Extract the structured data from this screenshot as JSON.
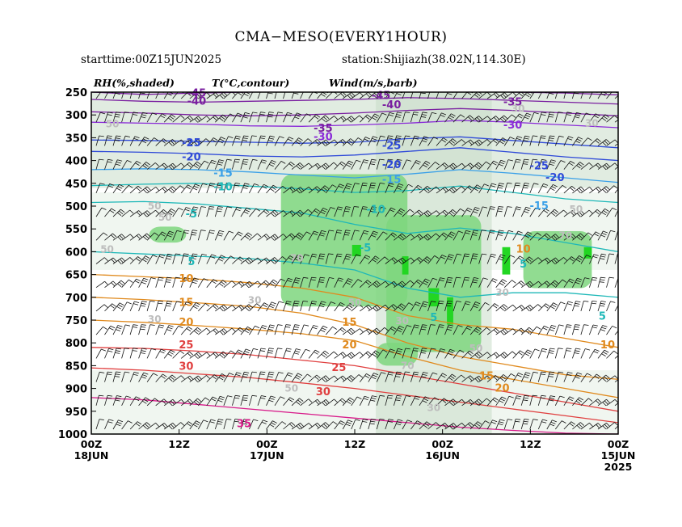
{
  "header": {
    "title": "CMA−MESO(EVERY1HOUR)",
    "starttime": "starttime:00Z15JUN2025",
    "station": "station:Shijiazh(38.02N,114.30E)",
    "legend_rh": "RH(%,shaded)",
    "legend_t": "T(°C,contour)",
    "legend_wind": "Wind(m/s,barb)"
  },
  "chart_data": {
    "type": "heatmap",
    "description_fields": [
      "relative humidity shaded",
      "temperature contours",
      "wind barbs"
    ],
    "y_axis": {
      "ticks": [
        250,
        300,
        350,
        400,
        450,
        500,
        550,
        600,
        650,
        700,
        750,
        800,
        850,
        900,
        950,
        1000
      ],
      "range": [
        250,
        1000
      ],
      "inverted": true
    },
    "x_axis": {
      "ticks": [
        {
          "label": "00Z",
          "sub": "18JUN",
          "sub2": ""
        },
        {
          "label": "12Z",
          "sub": "",
          "sub2": ""
        },
        {
          "label": "00Z",
          "sub": "17JUN",
          "sub2": ""
        },
        {
          "label": "12Z",
          "sub": "",
          "sub2": ""
        },
        {
          "label": "00Z",
          "sub": "16JUN",
          "sub2": ""
        },
        {
          "label": "12Z",
          "sub": "",
          "sub2": ""
        },
        {
          "label": "00Z",
          "sub": "15JUN",
          "sub2": "2025"
        }
      ],
      "reversed_time": true
    },
    "temperature_contours": [
      {
        "value": -45,
        "color": "#7a1fa0",
        "levels": [
          250,
          255,
          252,
          250,
          248,
          247,
          246,
          248,
          250,
          252,
          256
        ]
      },
      {
        "value": -40,
        "color": "#7a1fa0",
        "levels": [
          266,
          270,
          272,
          270,
          268,
          266,
          262,
          264,
          268,
          272,
          276
        ]
      },
      {
        "value": -35,
        "color": "#7a1fa0",
        "levels": [
          293,
          296,
          300,
          302,
          300,
          296,
          290,
          286,
          290,
          296,
          302
        ]
      },
      {
        "value": -30,
        "color": "#8a2bd8",
        "levels": [
          316,
          318,
          320,
          324,
          325,
          322,
          318,
          312,
          316,
          322,
          328
        ]
      },
      {
        "value": -25,
        "color": "#2f4ad8",
        "levels": [
          355,
          356,
          358,
          360,
          362,
          360,
          352,
          348,
          356,
          364,
          372
        ]
      },
      {
        "value": -20,
        "color": "#2f4ad8",
        "levels": [
          380,
          382,
          385,
          390,
          392,
          388,
          380,
          372,
          382,
          392,
          400
        ]
      },
      {
        "value": -15,
        "color": "#3aa0e8",
        "levels": [
          420,
          418,
          420,
          425,
          432,
          438,
          430,
          420,
          428,
          438,
          448
        ]
      },
      {
        "value": -10,
        "color": "#1fb8b8",
        "levels": [
          455,
          452,
          450,
          456,
          462,
          470,
          466,
          456,
          470,
          484,
          492
        ]
      },
      {
        "value": -5,
        "color": "#1fb8b8",
        "levels": [
          492,
          490,
          495,
          505,
          515,
          540,
          560,
          548,
          560,
          580,
          600
        ]
      },
      {
        "value": 5,
        "color": "#1fb8b8",
        "levels": [
          600,
          605,
          610,
          615,
          625,
          640,
          680,
          700,
          690,
          690,
          700
        ]
      },
      {
        "value": 10,
        "color": "#e08a1e",
        "levels": [
          650,
          655,
          660,
          668,
          680,
          700,
          740,
          760,
          770,
          790,
          810
        ]
      },
      {
        "value": 15,
        "color": "#e08a1e",
        "levels": [
          700,
          705,
          712,
          720,
          735,
          760,
          800,
          830,
          850,
          870,
          880
        ]
      },
      {
        "value": 20,
        "color": "#e08a1e",
        "levels": [
          750,
          755,
          762,
          770,
          780,
          795,
          830,
          860,
          880,
          900,
          920
        ]
      },
      {
        "value": 25,
        "color": "#e04040",
        "levels": [
          810,
          812,
          818,
          826,
          838,
          850,
          870,
          890,
          910,
          930,
          950
        ]
      },
      {
        "value": 30,
        "color": "#e04040",
        "levels": [
          855,
          860,
          868,
          876,
          888,
          900,
          915,
          930,
          945,
          960,
          975
        ]
      },
      {
        "value": 35,
        "color": "#d81b8a",
        "levels": [
          920,
          925,
          935,
          945,
          955,
          965,
          975,
          985,
          992,
          998,
          1000
        ]
      }
    ],
    "contour_label_positions": [
      {
        "value": -45,
        "x_frac": 0.2,
        "p": 253
      },
      {
        "value": -45,
        "x_frac": 0.55,
        "p": 258
      },
      {
        "value": -40,
        "x_frac": 0.2,
        "p": 270
      },
      {
        "value": -40,
        "x_frac": 0.57,
        "p": 278
      },
      {
        "value": -35,
        "x_frac": 0.44,
        "p": 330
      },
      {
        "value": -35,
        "x_frac": 0.8,
        "p": 272
      },
      {
        "value": -30,
        "x_frac": 0.44,
        "p": 348
      },
      {
        "value": -30,
        "x_frac": 0.8,
        "p": 323
      },
      {
        "value": -25,
        "x_frac": 0.19,
        "p": 362
      },
      {
        "value": -25,
        "x_frac": 0.57,
        "p": 368
      },
      {
        "value": -25,
        "x_frac": 0.85,
        "p": 412
      },
      {
        "value": -20,
        "x_frac": 0.19,
        "p": 393
      },
      {
        "value": -20,
        "x_frac": 0.57,
        "p": 410
      },
      {
        "value": -20,
        "x_frac": 0.88,
        "p": 438
      },
      {
        "value": -15,
        "x_frac": 0.25,
        "p": 428
      },
      {
        "value": -15,
        "x_frac": 0.57,
        "p": 442
      },
      {
        "value": -15,
        "x_frac": 0.85,
        "p": 500
      },
      {
        "value": -10,
        "x_frac": 0.25,
        "p": 458
      },
      {
        "value": -10,
        "x_frac": 0.54,
        "p": 508
      },
      {
        "value": -5,
        "x_frac": 0.19,
        "p": 518
      },
      {
        "value": -5,
        "x_frac": 0.52,
        "p": 592
      },
      {
        "value": 5,
        "x_frac": 0.19,
        "p": 622
      },
      {
        "value": 5,
        "x_frac": 0.82,
        "p": 628
      },
      {
        "value": 5,
        "x_frac": 0.97,
        "p": 742
      },
      {
        "value": 5,
        "x_frac": 0.65,
        "p": 745
      },
      {
        "value": 10,
        "x_frac": 0.18,
        "p": 660
      },
      {
        "value": 10,
        "x_frac": 0.82,
        "p": 595
      },
      {
        "value": 10,
        "x_frac": 0.98,
        "p": 805
      },
      {
        "value": 15,
        "x_frac": 0.18,
        "p": 712
      },
      {
        "value": 15,
        "x_frac": 0.49,
        "p": 755
      },
      {
        "value": 15,
        "x_frac": 0.75,
        "p": 873
      },
      {
        "value": 20,
        "x_frac": 0.18,
        "p": 755
      },
      {
        "value": 20,
        "x_frac": 0.49,
        "p": 805
      },
      {
        "value": 20,
        "x_frac": 0.78,
        "p": 900
      },
      {
        "value": 25,
        "x_frac": 0.18,
        "p": 805
      },
      {
        "value": 25,
        "x_frac": 0.47,
        "p": 855
      },
      {
        "value": 30,
        "x_frac": 0.18,
        "p": 852
      },
      {
        "value": 30,
        "x_frac": 0.44,
        "p": 908
      },
      {
        "value": 35,
        "x_frac": 0.29,
        "p": 978
      }
    ],
    "rh_labels": [
      {
        "text": "50",
        "x_frac": 0.04,
        "p": 320
      },
      {
        "text": "30",
        "x_frac": 0.81,
        "p": 286
      },
      {
        "text": "30",
        "x_frac": 0.95,
        "p": 318
      },
      {
        "text": "50",
        "x_frac": 0.12,
        "p": 500
      },
      {
        "text": "50",
        "x_frac": 0.14,
        "p": 525
      },
      {
        "text": "50",
        "x_frac": 0.03,
        "p": 595
      },
      {
        "text": "70",
        "x_frac": 0.39,
        "p": 614
      },
      {
        "text": "50",
        "x_frac": 0.92,
        "p": 507
      },
      {
        "text": "70",
        "x_frac": 0.9,
        "p": 565
      },
      {
        "text": "30",
        "x_frac": 0.31,
        "p": 707
      },
      {
        "text": "30",
        "x_frac": 0.12,
        "p": 748
      },
      {
        "text": "50",
        "x_frac": 0.5,
        "p": 712
      },
      {
        "text": "30",
        "x_frac": 0.59,
        "p": 752
      },
      {
        "text": "30",
        "x_frac": 0.78,
        "p": 690
      },
      {
        "text": "50",
        "x_frac": 0.73,
        "p": 812
      },
      {
        "text": "70",
        "x_frac": 0.6,
        "p": 850
      },
      {
        "text": "50",
        "x_frac": 0.38,
        "p": 900
      },
      {
        "text": "30",
        "x_frac": 0.65,
        "p": 942
      }
    ],
    "moist_regions": [
      {
        "level": "90",
        "color": "#7ed67e",
        "x0": 0.36,
        "x1": 0.6,
        "p0": 430,
        "p1": 720
      },
      {
        "level": "90",
        "color": "#7ed67e",
        "x0": 0.56,
        "x1": 0.74,
        "p0": 520,
        "p1": 820
      },
      {
        "level": "90",
        "color": "#7ed67e",
        "x0": 0.82,
        "x1": 0.95,
        "p0": 555,
        "p1": 680
      },
      {
        "level": "90",
        "color": "#7ed67e",
        "x0": 0.11,
        "x1": 0.18,
        "p0": 545,
        "p1": 580
      },
      {
        "level": "90",
        "color": "#7ed67e",
        "x0": 0.54,
        "x1": 0.62,
        "p0": 800,
        "p1": 850
      }
    ],
    "saturated_regions": [
      {
        "color": "#22d622",
        "x0": 0.495,
        "x1": 0.512,
        "p0": 585,
        "p1": 610
      },
      {
        "color": "#22d622",
        "x0": 0.59,
        "x1": 0.602,
        "p0": 610,
        "p1": 650
      },
      {
        "color": "#22d622",
        "x0": 0.64,
        "x1": 0.66,
        "p0": 680,
        "p1": 720
      },
      {
        "color": "#22d622",
        "x0": 0.675,
        "x1": 0.687,
        "p0": 700,
        "p1": 760
      },
      {
        "color": "#22d622",
        "x0": 0.78,
        "x1": 0.795,
        "p0": 590,
        "p1": 650
      },
      {
        "color": "#22d622",
        "x0": 0.935,
        "x1": 0.95,
        "p0": 590,
        "p1": 615
      }
    ],
    "rh_colors": {
      "30": "#eef5ee",
      "50": "#c8dcc8",
      "70": "#a8c8a8",
      "90": "#7ed67e",
      "100": "#22d622"
    }
  }
}
